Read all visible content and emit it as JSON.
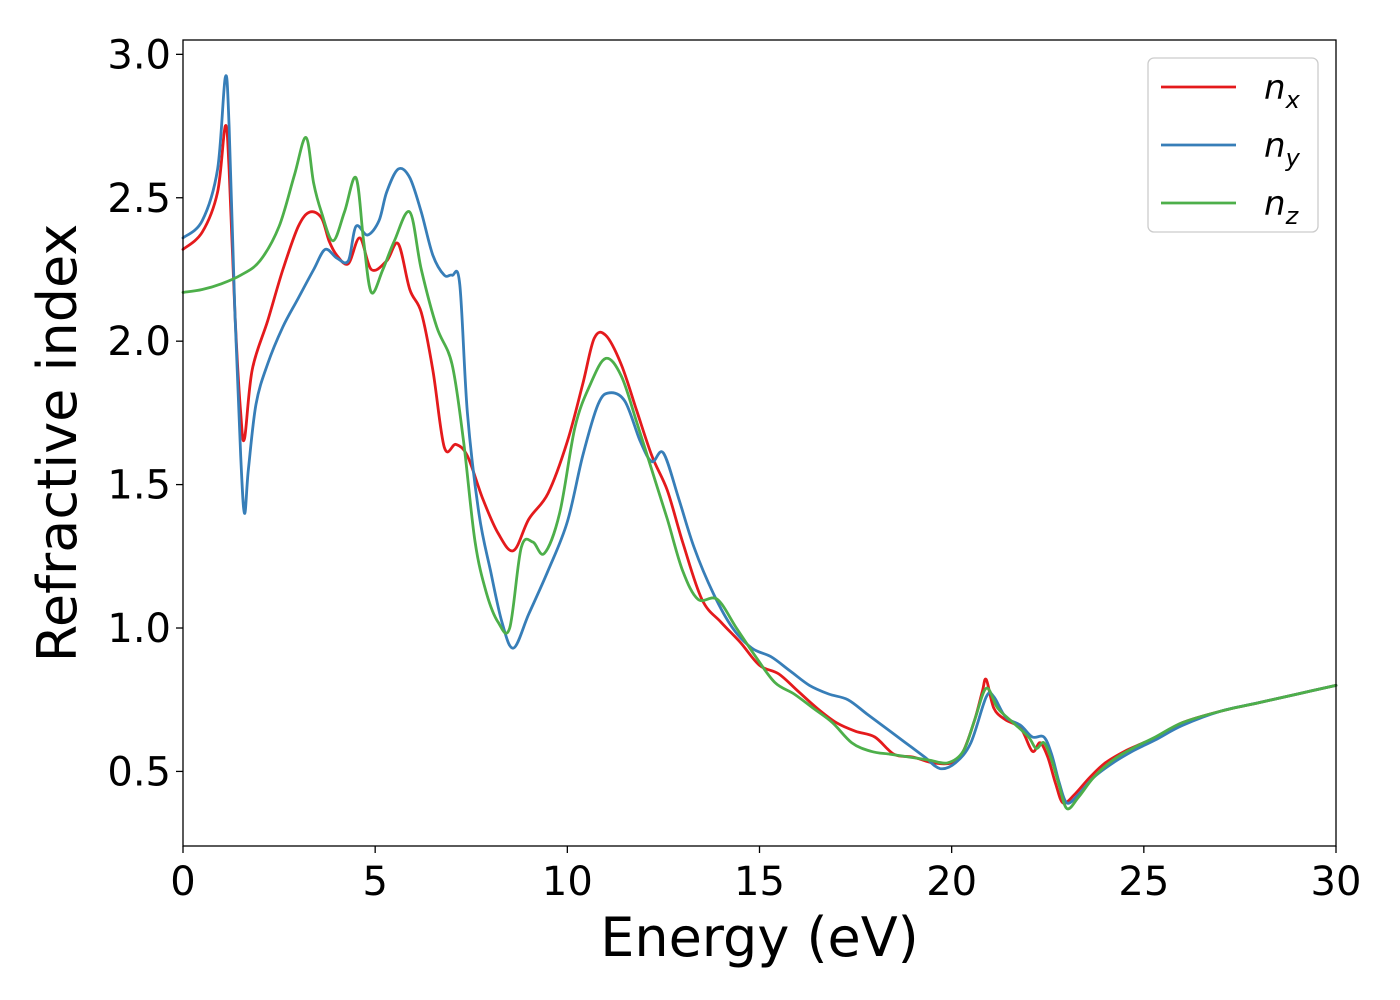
{
  "chart_data": {
    "type": "line",
    "xlabel": "Energy (eV)",
    "ylabel": "Refractive index",
    "xlim": [
      0,
      30
    ],
    "ylim": [
      0.24,
      3.05
    ],
    "xticks": [
      "0",
      "5",
      "10",
      "15",
      "20",
      "25",
      "30"
    ],
    "yticks": [
      "0.5",
      "1.0",
      "1.5",
      "2.0",
      "2.5",
      "3.0"
    ],
    "grid": false,
    "legend_position": "top-right",
    "series": [
      {
        "name": "n",
        "subscript": "x",
        "color": "#e41a1c",
        "x": [
          0,
          0.5,
          0.9,
          1.1,
          1.2,
          1.35,
          1.5,
          1.6,
          1.8,
          2.2,
          2.6,
          3.0,
          3.3,
          3.6,
          3.8,
          4.0,
          4.3,
          4.6,
          4.9,
          5.3,
          5.6,
          5.9,
          6.2,
          6.5,
          6.8,
          7.1,
          7.4,
          7.8,
          8.2,
          8.6,
          9.0,
          9.5,
          10.0,
          10.4,
          10.7,
          11.0,
          11.4,
          11.8,
          12.2,
          12.6,
          13.0,
          13.5,
          14.0,
          14.5,
          15.0,
          15.5,
          16.0,
          16.5,
          17.0,
          17.5,
          18.0,
          18.5,
          19.0,
          19.5,
          20.0,
          20.3,
          20.6,
          20.8,
          20.9,
          21.1,
          21.4,
          21.8,
          22.1,
          22.3,
          22.5,
          22.7,
          22.9,
          23.2,
          23.6,
          24.0,
          24.5,
          25.0,
          25.5,
          26.0,
          27.0,
          28.0,
          29.0,
          30.0
        ],
        "values": [
          2.32,
          2.38,
          2.52,
          2.75,
          2.6,
          2.1,
          1.75,
          1.66,
          1.9,
          2.07,
          2.25,
          2.4,
          2.45,
          2.43,
          2.35,
          2.3,
          2.27,
          2.36,
          2.25,
          2.28,
          2.34,
          2.18,
          2.1,
          1.9,
          1.63,
          1.64,
          1.6,
          1.45,
          1.33,
          1.27,
          1.38,
          1.47,
          1.65,
          1.85,
          2.01,
          2.02,
          1.92,
          1.76,
          1.6,
          1.48,
          1.3,
          1.1,
          1.02,
          0.95,
          0.87,
          0.84,
          0.78,
          0.72,
          0.67,
          0.64,
          0.62,
          0.56,
          0.55,
          0.53,
          0.53,
          0.57,
          0.68,
          0.78,
          0.82,
          0.72,
          0.68,
          0.65,
          0.57,
          0.6,
          0.55,
          0.46,
          0.39,
          0.42,
          0.48,
          0.53,
          0.57,
          0.6,
          0.63,
          0.67,
          0.71,
          0.74,
          0.77,
          0.8
        ]
      },
      {
        "name": "n",
        "subscript": "y",
        "color": "#377eb8",
        "x": [
          0,
          0.5,
          0.9,
          1.1,
          1.2,
          1.35,
          1.5,
          1.6,
          1.7,
          1.9,
          2.2,
          2.6,
          3.0,
          3.4,
          3.7,
          4.0,
          4.3,
          4.5,
          4.8,
          5.1,
          5.3,
          5.6,
          5.9,
          6.2,
          6.5,
          6.8,
          7.0,
          7.2,
          7.4,
          7.7,
          8.0,
          8.3,
          8.6,
          9.0,
          9.5,
          10.0,
          10.4,
          10.8,
          11.1,
          11.5,
          11.9,
          12.2,
          12.5,
          12.9,
          13.3,
          13.8,
          14.3,
          14.8,
          15.3,
          15.8,
          16.3,
          16.8,
          17.3,
          17.8,
          18.3,
          18.8,
          19.3,
          19.7,
          20.1,
          20.5,
          20.9,
          21.1,
          21.4,
          21.8,
          22.1,
          22.4,
          22.6,
          22.8,
          23.0,
          23.3,
          23.7,
          24.2,
          24.7,
          25.3,
          26.0,
          27.0,
          28.0,
          29.0,
          30.0
        ],
        "values": [
          2.36,
          2.42,
          2.6,
          2.92,
          2.75,
          2.1,
          1.6,
          1.4,
          1.55,
          1.78,
          1.92,
          2.05,
          2.15,
          2.25,
          2.32,
          2.29,
          2.28,
          2.4,
          2.37,
          2.42,
          2.52,
          2.6,
          2.57,
          2.45,
          2.3,
          2.23,
          2.23,
          2.2,
          1.75,
          1.4,
          1.2,
          1.02,
          0.93,
          1.05,
          1.2,
          1.37,
          1.6,
          1.78,
          1.82,
          1.79,
          1.65,
          1.58,
          1.61,
          1.45,
          1.28,
          1.12,
          1.0,
          0.93,
          0.9,
          0.85,
          0.8,
          0.77,
          0.75,
          0.7,
          0.65,
          0.6,
          0.55,
          0.51,
          0.53,
          0.6,
          0.76,
          0.76,
          0.69,
          0.66,
          0.62,
          0.62,
          0.56,
          0.46,
          0.39,
          0.42,
          0.48,
          0.53,
          0.57,
          0.61,
          0.66,
          0.71,
          0.74,
          0.77,
          0.8
        ]
      },
      {
        "name": "n",
        "subscript": "z",
        "color": "#4daf4a",
        "x": [
          0,
          0.5,
          1.0,
          1.5,
          2.0,
          2.5,
          2.9,
          3.2,
          3.4,
          3.6,
          3.9,
          4.2,
          4.5,
          4.7,
          4.9,
          5.2,
          5.5,
          5.9,
          6.2,
          6.6,
          7.0,
          7.3,
          7.6,
          7.9,
          8.2,
          8.5,
          8.8,
          9.1,
          9.4,
          9.8,
          10.2,
          10.6,
          11.0,
          11.4,
          11.8,
          12.2,
          12.6,
          13.0,
          13.4,
          13.9,
          14.4,
          14.9,
          15.4,
          15.9,
          16.4,
          16.9,
          17.4,
          17.9,
          18.4,
          18.9,
          19.4,
          19.9,
          20.3,
          20.6,
          20.9,
          21.2,
          21.6,
          22.0,
          22.2,
          22.4,
          22.6,
          22.8,
          23.0,
          23.3,
          23.7,
          24.2,
          24.7,
          25.3,
          26.0,
          27.0,
          28.0,
          29.0,
          30.0
        ],
        "values": [
          2.17,
          2.18,
          2.2,
          2.23,
          2.28,
          2.4,
          2.58,
          2.71,
          2.55,
          2.45,
          2.35,
          2.45,
          2.57,
          2.35,
          2.17,
          2.25,
          2.35,
          2.45,
          2.25,
          2.05,
          1.92,
          1.65,
          1.3,
          1.12,
          1.02,
          1.0,
          1.28,
          1.3,
          1.26,
          1.4,
          1.7,
          1.85,
          1.94,
          1.88,
          1.72,
          1.55,
          1.38,
          1.2,
          1.1,
          1.1,
          1.0,
          0.9,
          0.81,
          0.77,
          0.72,
          0.67,
          0.6,
          0.57,
          0.56,
          0.55,
          0.54,
          0.53,
          0.57,
          0.68,
          0.79,
          0.72,
          0.67,
          0.62,
          0.58,
          0.6,
          0.54,
          0.45,
          0.37,
          0.41,
          0.48,
          0.54,
          0.58,
          0.62,
          0.67,
          0.71,
          0.74,
          0.77,
          0.8
        ]
      }
    ]
  }
}
